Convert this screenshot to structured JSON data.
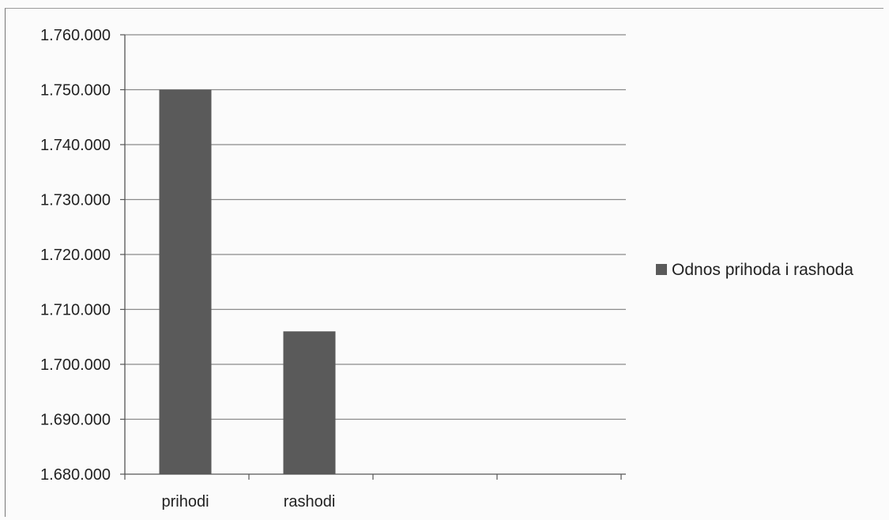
{
  "chart_data": {
    "type": "bar",
    "categories": [
      "prihodi",
      "rashodi"
    ],
    "series": [
      {
        "name": "Odnos prihoda i rashoda",
        "values": [
          1750000,
          1706000
        ]
      }
    ],
    "ylim": [
      1680000,
      1760000
    ],
    "yticks": [
      "1.680.000",
      "1.690.000",
      "1.700.000",
      "1.710.000",
      "1.720.000",
      "1.730.000",
      "1.740.000",
      "1.750.000",
      "1.760.000"
    ],
    "grid": true,
    "legend_position": "right",
    "bar_color": "#5a5a5a",
    "grid_color": "#8a8a8a"
  }
}
